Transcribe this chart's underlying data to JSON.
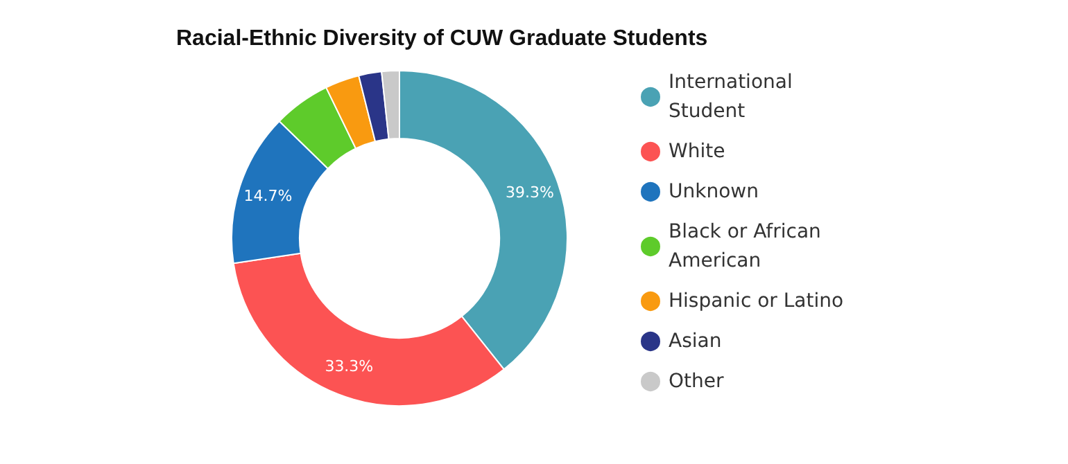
{
  "chart_data": {
    "type": "donut",
    "title": "Racial-Ethnic Diversity of CUW Graduate Students",
    "categories": [
      "International Student",
      "White",
      "Unknown",
      "Black or African American",
      "Hispanic or Latino",
      "Asian",
      "Other"
    ],
    "values": [
      39.3,
      33.3,
      14.7,
      5.5,
      3.3,
      2.2,
      1.7
    ],
    "colors": [
      "#4aa2b4",
      "#fc5353",
      "#1f74bd",
      "#5ecb2b",
      "#f99a10",
      "#2a3588",
      "#c9c9c9"
    ],
    "value_labels": [
      "39.3%",
      "33.3%",
      "14.7%",
      null,
      null,
      null,
      null
    ],
    "legend": "right"
  }
}
